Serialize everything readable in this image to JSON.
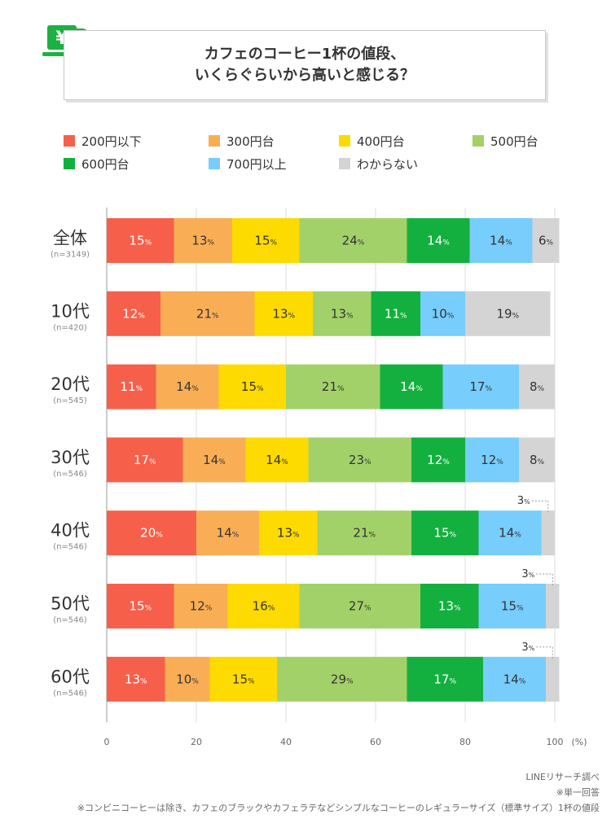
{
  "title": {
    "line1": "カフェのコーヒー1杯の値段、",
    "line2": "いくらぐらいから高いと感じる？"
  },
  "icon": {
    "name": "coffee-cup-yen-icon",
    "glyph": "¥",
    "color": "#1db043"
  },
  "footer": {
    "source": "LINEリサーチ調べ",
    "note1": "※単一回答",
    "note2": "※コンビニコーヒーは除き、カフェのブラックやカフェラテなどシンプルなコーヒーのレギュラーサイズ（標準サイズ）1杯の値段"
  },
  "chart_data": {
    "type": "bar",
    "orientation": "horizontal-stacked-100",
    "title": "カフェのコーヒー1杯の値段、いくらぐらいから高いと感じる？",
    "xlabel": "(%)",
    "xlim": [
      0,
      100
    ],
    "xticks": [
      0,
      20,
      40,
      60,
      80,
      100
    ],
    "percent_suffix": "%",
    "legend_position": "top",
    "categories": [
      {
        "label": "全体",
        "n": "(n=3149)"
      },
      {
        "label": "10代",
        "n": "(n=420)"
      },
      {
        "label": "20代",
        "n": "(n=545)"
      },
      {
        "label": "30代",
        "n": "(n=546)"
      },
      {
        "label": "40代",
        "n": "(n=546)"
      },
      {
        "label": "50代",
        "n": "(n=546)"
      },
      {
        "label": "60代",
        "n": "(n=546)"
      }
    ],
    "series": [
      {
        "name": "200円以下",
        "color": "#f6604b",
        "values": [
          15,
          12,
          11,
          17,
          20,
          15,
          13
        ]
      },
      {
        "name": "300円台",
        "color": "#f9ae56",
        "values": [
          13,
          21,
          14,
          14,
          14,
          12,
          10
        ]
      },
      {
        "name": "400円台",
        "color": "#fddb00",
        "values": [
          15,
          13,
          15,
          14,
          13,
          16,
          15
        ]
      },
      {
        "name": "500円台",
        "color": "#a3d169",
        "values": [
          24,
          13,
          21,
          23,
          21,
          27,
          29
        ]
      },
      {
        "name": "600円台",
        "color": "#13b03f",
        "values": [
          14,
          11,
          14,
          12,
          15,
          13,
          17
        ]
      },
      {
        "name": "700円以上",
        "color": "#77cdfb",
        "values": [
          14,
          10,
          17,
          12,
          14,
          15,
          14
        ]
      },
      {
        "name": "わからない",
        "color": "#d4d4d4",
        "values": [
          6,
          19,
          8,
          8,
          3,
          3,
          3
        ]
      }
    ]
  }
}
